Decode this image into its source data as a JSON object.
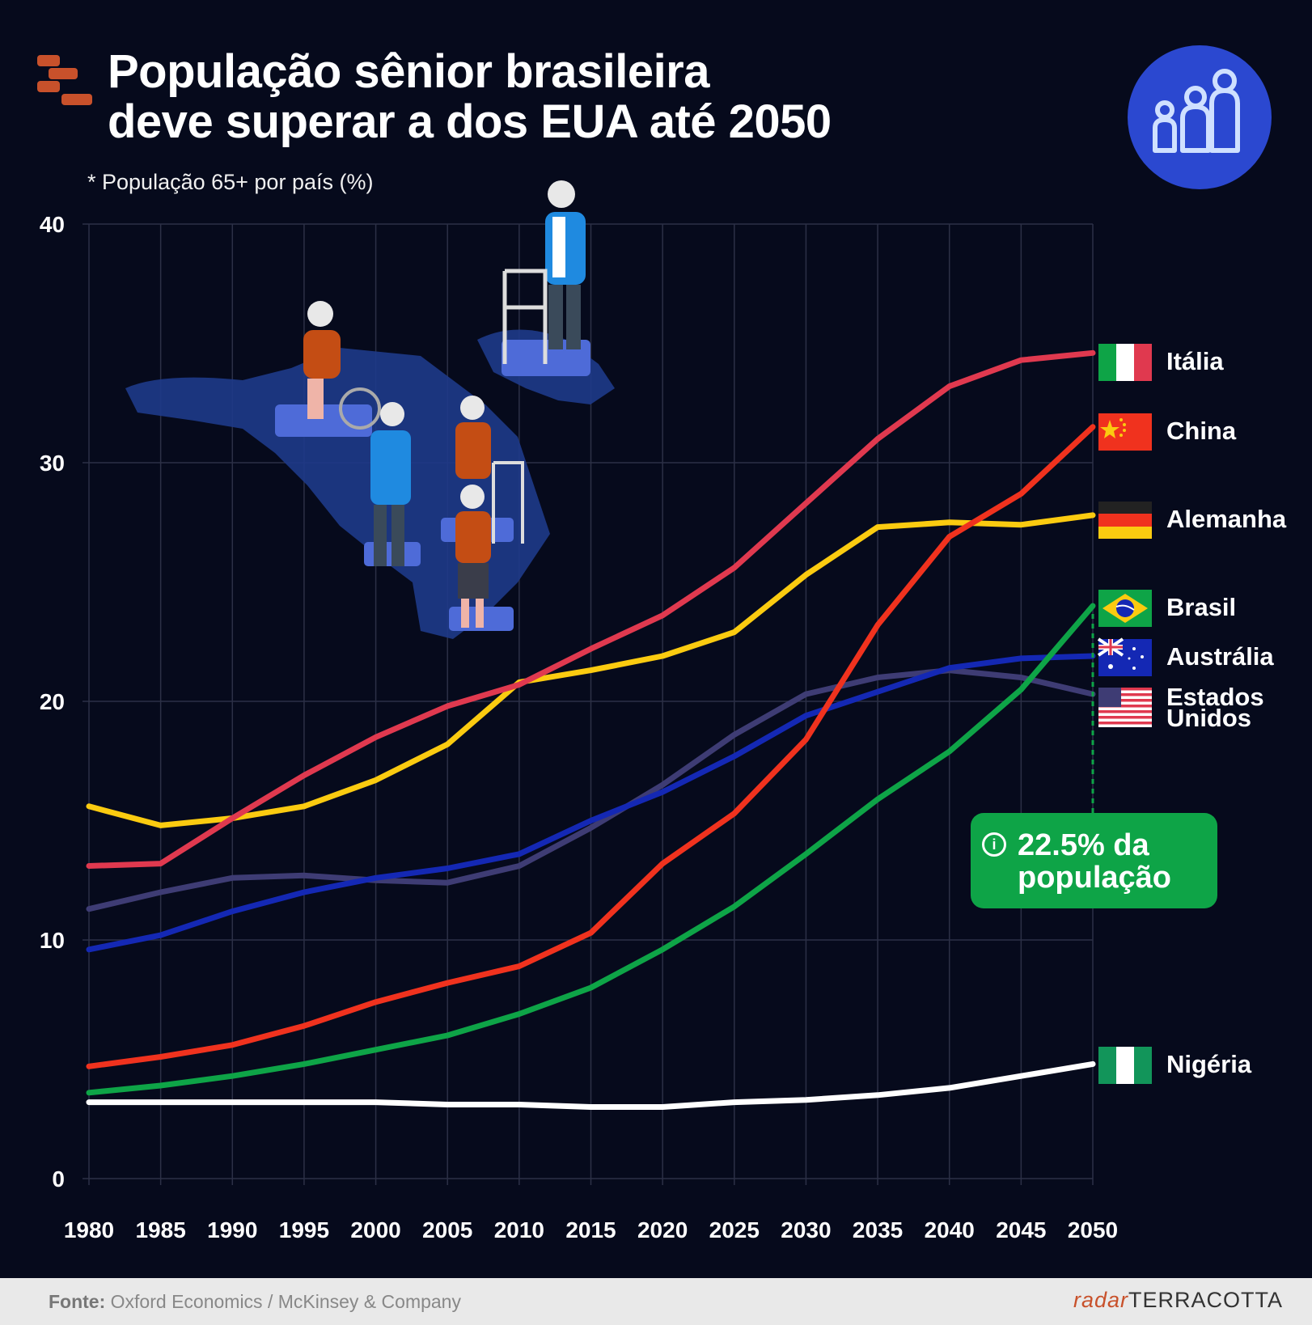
{
  "title_line1": "População sênior brasileira",
  "title_line2": "deve superar a dos EUA até 2050",
  "subtitle": "* População 65+ por país (%)",
  "callout": {
    "line1": "22.5% da",
    "line2": "população",
    "icon": "info-icon"
  },
  "footer": {
    "source_label": "Fonte:",
    "source_text": "Oxford Economics / McKinsey & Company",
    "brand_prefix": "radar",
    "brand_name": "TERRACOTTA"
  },
  "colors": {
    "background": "#060a1c",
    "italia": "#e0394f",
    "china": "#f0321e",
    "alemanha": "#fbcb10",
    "brasil": "#0ea447",
    "australia": "#1428b4",
    "eua": "#3e3c74",
    "nigeria": "#ffffff",
    "brand": "#c8512b"
  },
  "chart_data": {
    "type": "line",
    "title": "População sênior brasileira deve superar a dos EUA até 2050",
    "ylabel": "População 65+ por país (%)",
    "xlabel": "",
    "ylim": [
      0,
      40
    ],
    "yticks": [
      0,
      10,
      20,
      30,
      40
    ],
    "xticks": [
      1980,
      1985,
      1990,
      1995,
      2000,
      2005,
      2010,
      2015,
      2020,
      2025,
      2030,
      2035,
      2040,
      2045,
      2050
    ],
    "x": [
      1980,
      1985,
      1990,
      1995,
      2000,
      2005,
      2010,
      2015,
      2020,
      2025,
      2030,
      2035,
      2040,
      2045,
      2050
    ],
    "series": [
      {
        "name": "Itália",
        "key": "italia",
        "values": [
          13.1,
          13.2,
          15.1,
          16.9,
          18.5,
          19.8,
          20.7,
          22.2,
          23.6,
          25.6,
          28.3,
          31.0,
          33.2,
          34.3,
          34.6
        ]
      },
      {
        "name": "China",
        "key": "china",
        "values": [
          4.7,
          5.1,
          5.6,
          6.4,
          7.4,
          8.2,
          8.9,
          10.3,
          13.2,
          15.3,
          18.4,
          23.2,
          26.9,
          28.7,
          31.5
        ]
      },
      {
        "name": "Alemanha",
        "key": "alemanha",
        "values": [
          15.6,
          14.8,
          15.1,
          15.6,
          16.7,
          18.2,
          20.8,
          21.3,
          21.9,
          22.9,
          25.3,
          27.3,
          27.5,
          27.4,
          27.8
        ]
      },
      {
        "name": "Brasil",
        "key": "brasil",
        "values": [
          3.6,
          3.9,
          4.3,
          4.8,
          5.4,
          6.0,
          6.9,
          8.0,
          9.6,
          11.4,
          13.6,
          15.9,
          17.9,
          20.5,
          24.0
        ]
      },
      {
        "name": "Austrália",
        "key": "australia",
        "values": [
          9.6,
          10.2,
          11.2,
          12.0,
          12.6,
          13.0,
          13.6,
          15.0,
          16.2,
          17.7,
          19.4,
          20.4,
          21.4,
          21.8,
          21.9
        ]
      },
      {
        "name": "Estados Unidos",
        "key": "eua",
        "values": [
          11.3,
          12.0,
          12.6,
          12.7,
          12.5,
          12.4,
          13.1,
          14.7,
          16.5,
          18.6,
          20.3,
          21.0,
          21.3,
          21.0,
          20.3
        ]
      },
      {
        "name": "Nigéria",
        "key": "nigeria",
        "values": [
          3.2,
          3.2,
          3.2,
          3.2,
          3.2,
          3.1,
          3.1,
          3.0,
          3.0,
          3.2,
          3.3,
          3.5,
          3.8,
          4.3,
          4.8
        ]
      }
    ],
    "labels": [
      {
        "key": "italia",
        "text": "Itália"
      },
      {
        "key": "china",
        "text": "China"
      },
      {
        "key": "alemanha",
        "text": "Alemanha"
      },
      {
        "key": "brasil",
        "text": "Brasil"
      },
      {
        "key": "australia",
        "text": "Austrália"
      },
      {
        "key": "eua",
        "text": "Estados Unidos"
      },
      {
        "key": "nigeria",
        "text": "Nigéria"
      }
    ]
  }
}
